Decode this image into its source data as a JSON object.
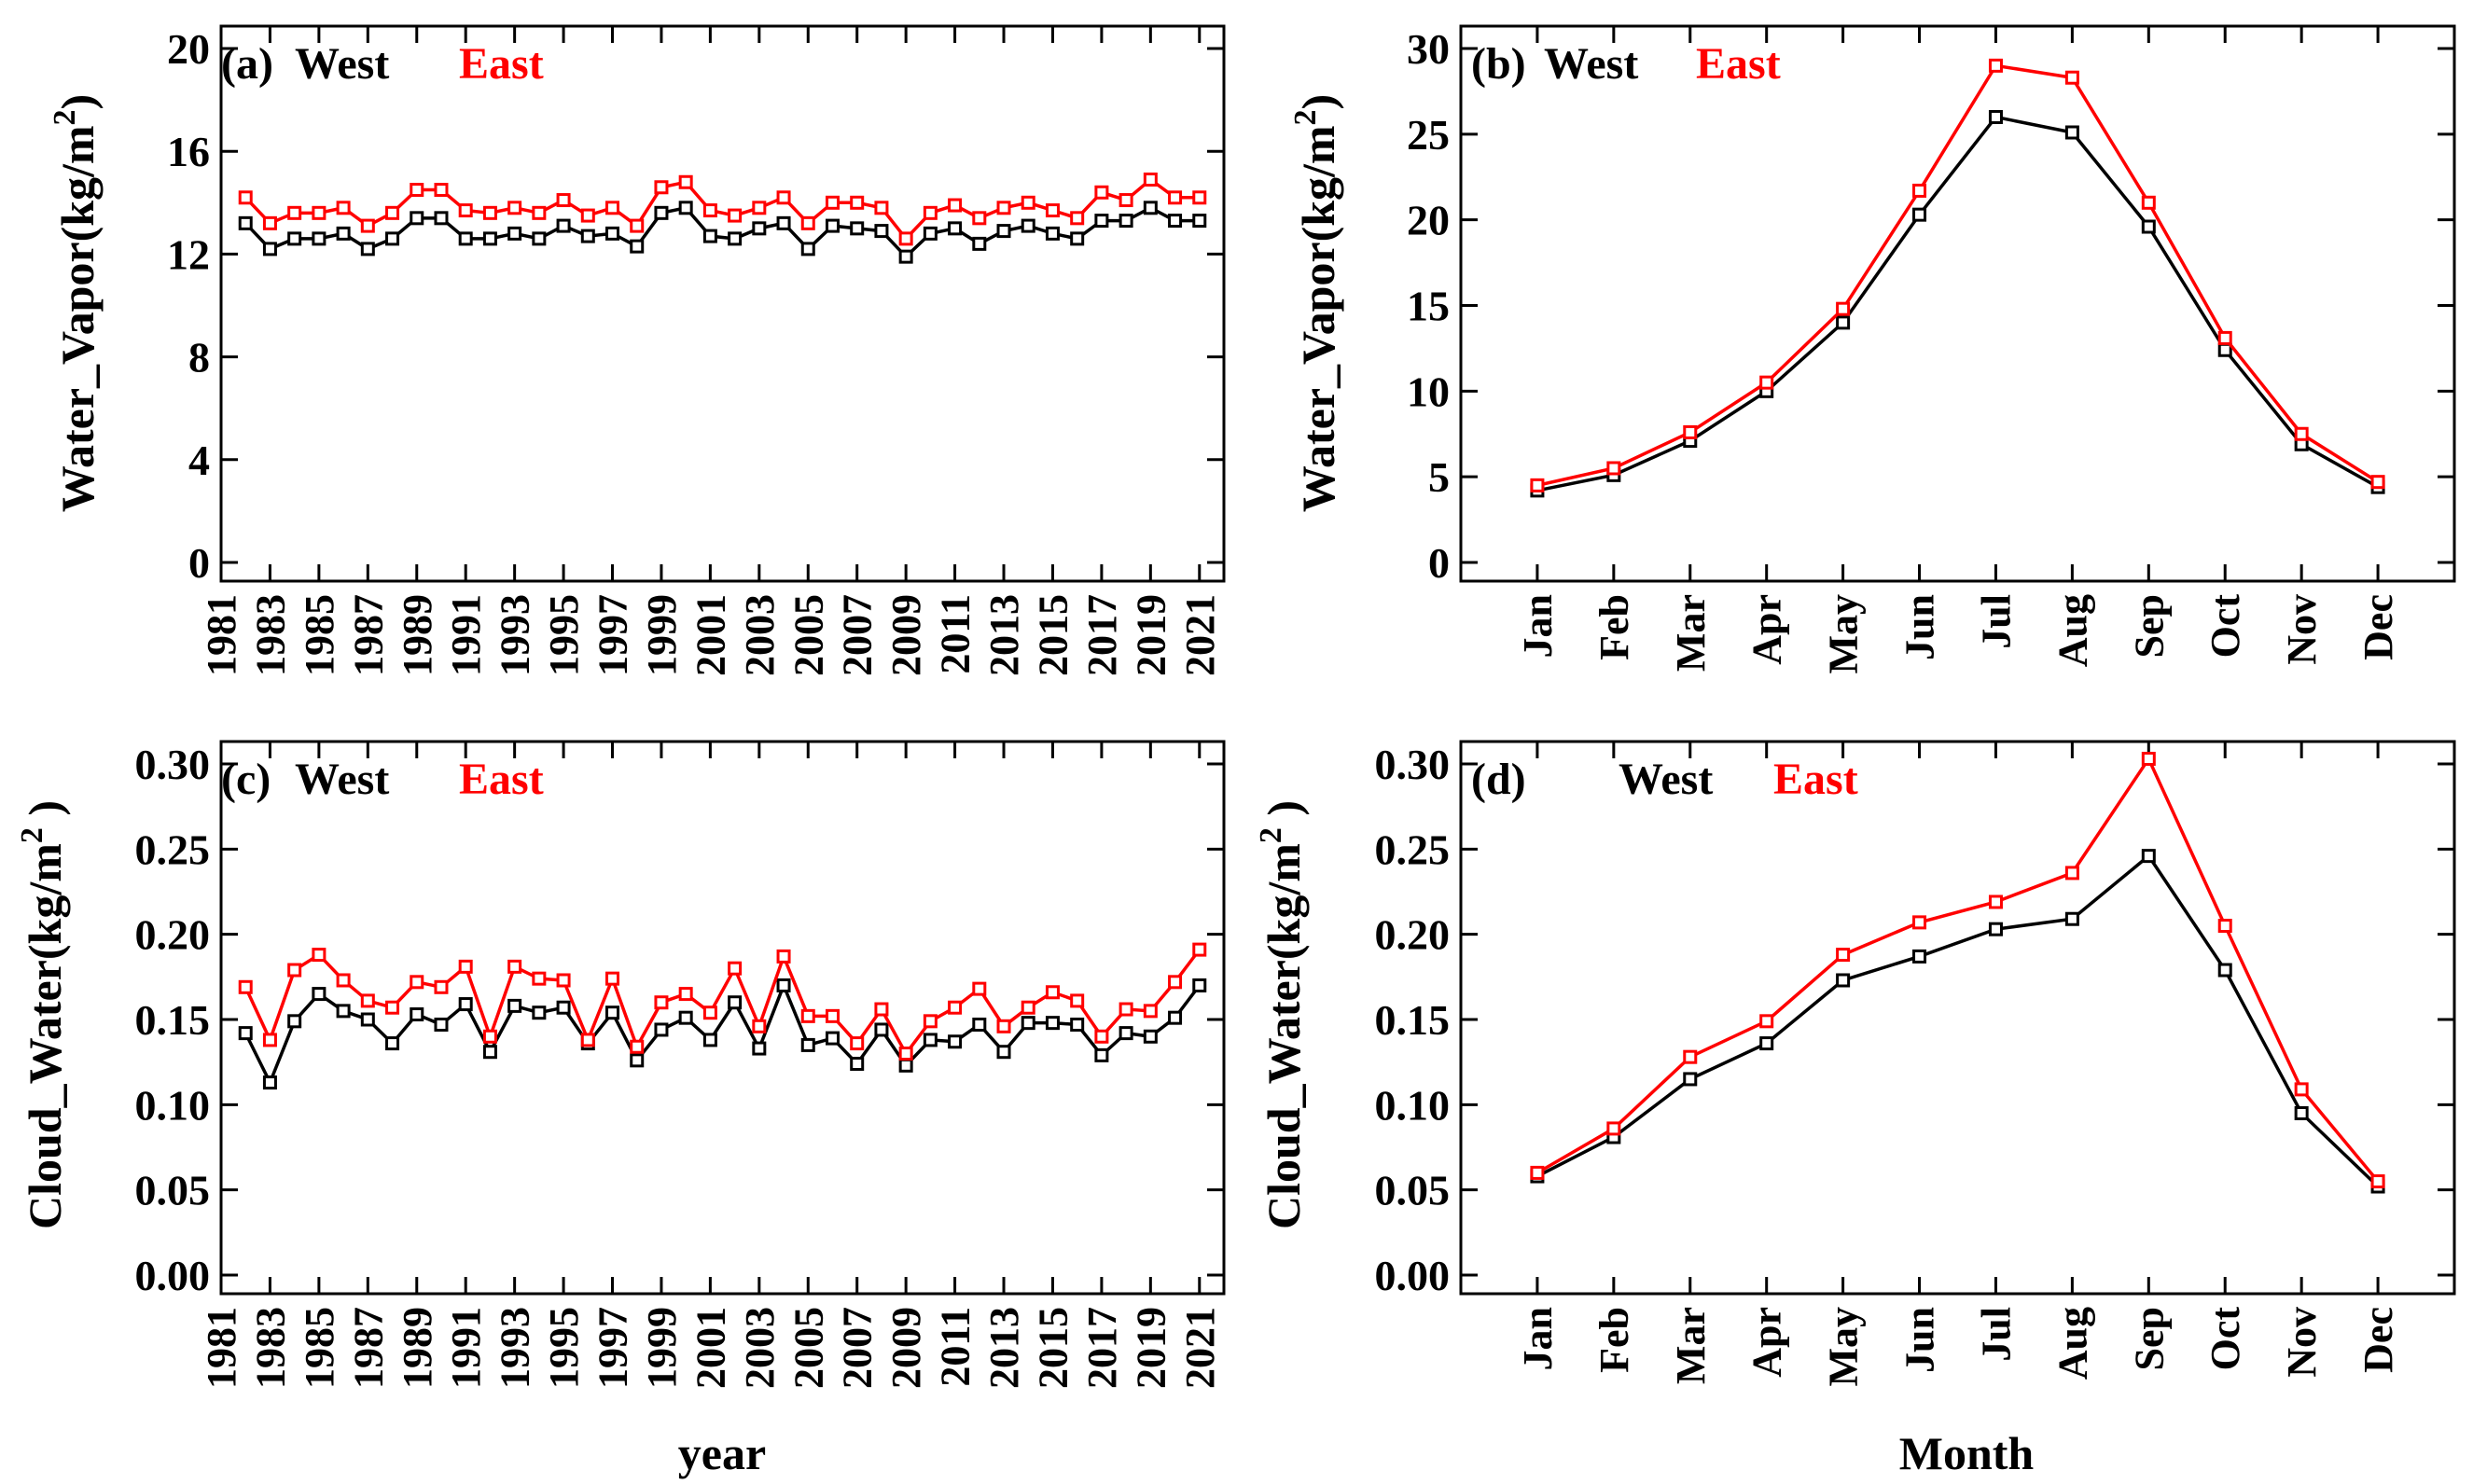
{
  "colors": {
    "west": "#000000",
    "east": "#ff0000"
  },
  "chart_data": [
    {
      "type": "line",
      "panel_label": "(a)",
      "legend": [
        "West",
        "East"
      ],
      "ylabel_main": "Water_Vapor(kg/m",
      "ylabel_sup": "2",
      "ylabel_close": ")",
      "xlabel": "",
      "ylim": [
        0,
        20
      ],
      "yticks": [
        0,
        4,
        8,
        12,
        16,
        20
      ],
      "ytick_labels": [
        "0",
        "4",
        "8",
        "12",
        "16",
        "20"
      ],
      "x": [
        1982,
        1983,
        1984,
        1985,
        1986,
        1987,
        1988,
        1989,
        1990,
        1991,
        1992,
        1993,
        1994,
        1995,
        1996,
        1997,
        1998,
        1999,
        2000,
        2001,
        2002,
        2003,
        2004,
        2005,
        2006,
        2007,
        2008,
        2009,
        2010,
        2011,
        2012,
        2013,
        2014,
        2015,
        2016,
        2017,
        2018,
        2019,
        2020,
        2021
      ],
      "xlim": [
        1981,
        2022
      ],
      "xticks": [
        1981,
        1983,
        1985,
        1987,
        1989,
        1991,
        1993,
        1995,
        1997,
        1999,
        2001,
        2003,
        2005,
        2007,
        2009,
        2011,
        2013,
        2015,
        2017,
        2019,
        2021
      ],
      "xtick_labels": [
        "1981",
        "1983",
        "1985",
        "1987",
        "1989",
        "1991",
        "1993",
        "1995",
        "1997",
        "1999",
        "2001",
        "2003",
        "2005",
        "2007",
        "2009",
        "2011",
        "2013",
        "2015",
        "2017",
        "2019",
        "2021"
      ],
      "series": [
        {
          "name": "West",
          "values": [
            13.2,
            12.2,
            12.6,
            12.6,
            12.8,
            12.2,
            12.6,
            13.4,
            13.4,
            12.6,
            12.6,
            12.8,
            12.6,
            13.1,
            12.7,
            12.8,
            12.3,
            13.6,
            13.8,
            12.7,
            12.6,
            13.0,
            13.2,
            12.2,
            13.1,
            13.0,
            12.9,
            11.9,
            12.8,
            13.0,
            12.4,
            12.9,
            13.1,
            12.8,
            12.6,
            13.3,
            13.3,
            13.8,
            13.3,
            13.3
          ]
        },
        {
          "name": "East",
          "values": [
            14.2,
            13.2,
            13.6,
            13.6,
            13.8,
            13.1,
            13.6,
            14.5,
            14.5,
            13.7,
            13.6,
            13.8,
            13.6,
            14.1,
            13.5,
            13.8,
            13.1,
            14.6,
            14.8,
            13.7,
            13.5,
            13.8,
            14.2,
            13.2,
            14.0,
            14.0,
            13.8,
            12.6,
            13.6,
            13.9,
            13.4,
            13.8,
            14.0,
            13.7,
            13.4,
            14.4,
            14.1,
            14.9,
            14.2,
            14.2
          ]
        }
      ]
    },
    {
      "type": "line",
      "panel_label": "(b)",
      "legend": [
        "West",
        "East"
      ],
      "ylabel_main": "Water_Vapor(kg/m",
      "ylabel_sup": "2",
      "ylabel_close": ")",
      "xlabel": "",
      "ylim": [
        0,
        30
      ],
      "yticks": [
        0,
        5,
        10,
        15,
        20,
        25,
        30
      ],
      "ytick_labels": [
        "0",
        "5",
        "10",
        "15",
        "20",
        "25",
        "30"
      ],
      "x": [
        1,
        2,
        3,
        4,
        5,
        6,
        7,
        8,
        9,
        10,
        11,
        12
      ],
      "xlim": [
        0,
        13
      ],
      "xticks": [
        1,
        2,
        3,
        4,
        5,
        6,
        7,
        8,
        9,
        10,
        11,
        12
      ],
      "xtick_labels": [
        "Jan",
        "Feb",
        "Mar",
        "Apr",
        "May",
        "Jun",
        "Jul",
        "Aug",
        "Sep",
        "Oct",
        "Nov",
        "Dec"
      ],
      "series": [
        {
          "name": "West",
          "values": [
            4.2,
            5.1,
            7.1,
            10.0,
            14.0,
            20.3,
            26.0,
            25.1,
            19.6,
            12.4,
            6.9,
            4.4
          ]
        },
        {
          "name": "East",
          "values": [
            4.5,
            5.5,
            7.6,
            10.5,
            14.8,
            21.7,
            29.0,
            28.3,
            21.0,
            13.1,
            7.5,
            4.7
          ]
        }
      ]
    },
    {
      "type": "line",
      "panel_label": "(c)",
      "legend": [
        "West",
        "East"
      ],
      "ylabel_main": "Cloud_Water(kg/m",
      "ylabel_sup": "2",
      "ylabel_close": " )",
      "xlabel": "year",
      "ylim": [
        0,
        0.3
      ],
      "yticks": [
        0,
        0.05,
        0.1,
        0.15,
        0.2,
        0.25,
        0.3
      ],
      "ytick_labels": [
        "0.00",
        "0.05",
        "0.10",
        "0.15",
        "0.20",
        "0.25",
        "0.30"
      ],
      "x": [
        1982,
        1983,
        1984,
        1985,
        1986,
        1987,
        1988,
        1989,
        1990,
        1991,
        1992,
        1993,
        1994,
        1995,
        1996,
        1997,
        1998,
        1999,
        2000,
        2001,
        2002,
        2003,
        2004,
        2005,
        2006,
        2007,
        2008,
        2009,
        2010,
        2011,
        2012,
        2013,
        2014,
        2015,
        2016,
        2017,
        2018,
        2019,
        2020,
        2021
      ],
      "xlim": [
        1981,
        2022
      ],
      "xticks": [
        1981,
        1983,
        1985,
        1987,
        1989,
        1991,
        1993,
        1995,
        1997,
        1999,
        2001,
        2003,
        2005,
        2007,
        2009,
        2011,
        2013,
        2015,
        2017,
        2019,
        2021
      ],
      "xtick_labels": [
        "1981",
        "1983",
        "1985",
        "1987",
        "1989",
        "1991",
        "1993",
        "1995",
        "1997",
        "1999",
        "2001",
        "2003",
        "2005",
        "2007",
        "2009",
        "2011",
        "2013",
        "2015",
        "2017",
        "2019",
        "2021"
      ],
      "series": [
        {
          "name": "West",
          "values": [
            0.142,
            0.113,
            0.149,
            0.165,
            0.155,
            0.15,
            0.136,
            0.153,
            0.147,
            0.159,
            0.131,
            0.158,
            0.154,
            0.157,
            0.136,
            0.154,
            0.126,
            0.144,
            0.151,
            0.138,
            0.16,
            0.133,
            0.17,
            0.135,
            0.139,
            0.124,
            0.144,
            0.123,
            0.138,
            0.137,
            0.147,
            0.131,
            0.148,
            0.148,
            0.147,
            0.129,
            0.142,
            0.14,
            0.151,
            0.17
          ]
        },
        {
          "name": "East",
          "values": [
            0.169,
            0.138,
            0.179,
            0.188,
            0.173,
            0.161,
            0.157,
            0.172,
            0.169,
            0.181,
            0.14,
            0.181,
            0.174,
            0.173,
            0.138,
            0.174,
            0.134,
            0.16,
            0.165,
            0.154,
            0.18,
            0.146,
            0.187,
            0.152,
            0.152,
            0.136,
            0.156,
            0.13,
            0.149,
            0.157,
            0.168,
            0.146,
            0.157,
            0.166,
            0.161,
            0.14,
            0.156,
            0.155,
            0.172,
            0.191
          ]
        }
      ]
    },
    {
      "type": "line",
      "panel_label": "(d)",
      "legend": [
        "West",
        "East"
      ],
      "ylabel_main": "Cloud_Water(kg/m",
      "ylabel_sup": "2",
      "ylabel_close": " )",
      "xlabel": "Month",
      "ylim": [
        0,
        0.3
      ],
      "yticks": [
        0,
        0.05,
        0.1,
        0.15,
        0.2,
        0.25,
        0.3
      ],
      "ytick_labels": [
        "0.00",
        "0.05",
        "0.10",
        "0.15",
        "0.20",
        "0.25",
        "0.30"
      ],
      "x": [
        1,
        2,
        3,
        4,
        5,
        6,
        7,
        8,
        9,
        10,
        11,
        12
      ],
      "xlim": [
        0,
        13
      ],
      "xticks": [
        1,
        2,
        3,
        4,
        5,
        6,
        7,
        8,
        9,
        10,
        11,
        12
      ],
      "xtick_labels": [
        "Jan",
        "Feb",
        "Mar",
        "Apr",
        "May",
        "Jun",
        "Jul",
        "Aug",
        "Sep",
        "Oct",
        "Nov",
        "Dec"
      ],
      "series": [
        {
          "name": "West",
          "values": [
            0.058,
            0.081,
            0.115,
            0.136,
            0.173,
            0.187,
            0.203,
            0.209,
            0.246,
            0.179,
            0.095,
            0.052
          ]
        },
        {
          "name": "East",
          "values": [
            0.06,
            0.086,
            0.128,
            0.149,
            0.188,
            0.207,
            0.219,
            0.236,
            0.303,
            0.205,
            0.109,
            0.055
          ]
        }
      ]
    }
  ]
}
